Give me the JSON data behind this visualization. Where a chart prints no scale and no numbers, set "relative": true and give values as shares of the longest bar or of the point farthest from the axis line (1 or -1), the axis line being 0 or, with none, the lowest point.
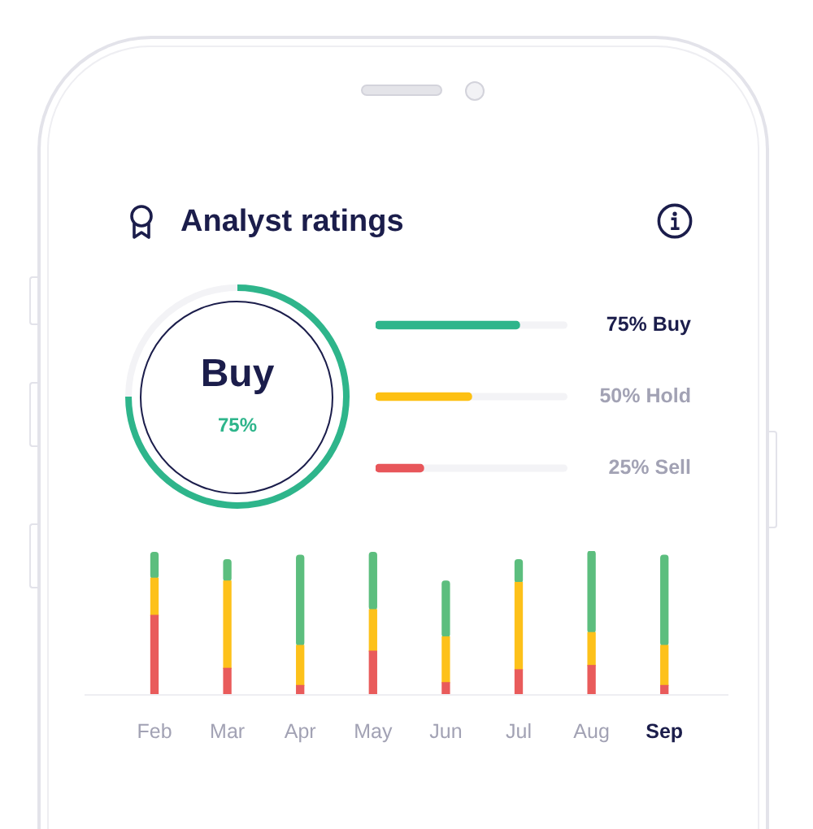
{
  "chart_data": [
    {
      "type": "donut",
      "title": "Analyst ratings",
      "categories": [
        "Buy",
        null
      ],
      "values": [
        75,
        25
      ],
      "colors": [
        "#2eb58b",
        "#f3f3f6"
      ],
      "value_labels": [
        "75%",
        null
      ]
    },
    {
      "type": "bar",
      "orientation": "horizontal",
      "categories": [
        "Buy",
        "Hold",
        "Sell"
      ],
      "values": [
        75,
        50,
        25
      ],
      "colors": [
        "#2eb58b",
        "#fdc012",
        "#e8565a"
      ],
      "value_labels": [
        "75%",
        "50%",
        "25%"
      ],
      "xlim": [
        0,
        100
      ],
      "tick_labels": "y"
    },
    {
      "type": "bar",
      "stacked": true,
      "relative": true,
      "categories": [
        "Feb",
        "Mar",
        "Apr",
        "May",
        "Jun",
        "Jul",
        "Aug",
        "Sep"
      ],
      "series": [
        {
          "color": "#e95b5b",
          "values": [
            0.55,
            0.18,
            0.06,
            0.3,
            0.08,
            0.17,
            0.2,
            0.06
          ]
        },
        {
          "color": "#fdc11a",
          "values": [
            0.26,
            0.61,
            0.28,
            0.29,
            0.32,
            0.61,
            0.23,
            0.28
          ]
        },
        {
          "color": "#5cbe7e",
          "values": [
            0.18,
            0.15,
            0.63,
            0.4,
            0.39,
            0.16,
            0.57,
            0.63
          ]
        }
      ]
    }
  ]
}
